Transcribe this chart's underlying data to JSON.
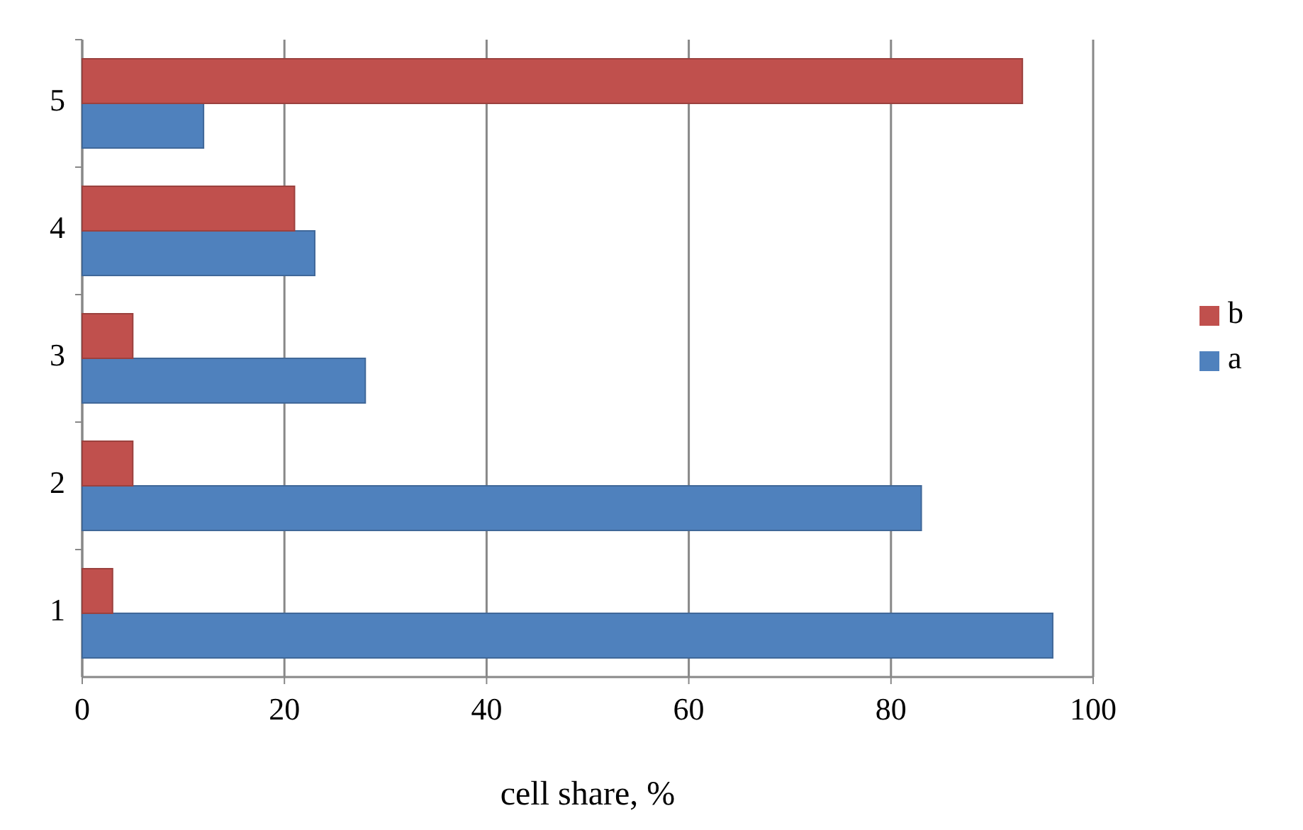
{
  "chart_data": {
    "type": "bar",
    "orientation": "horizontal",
    "xlabel": "cell share, %",
    "categories": [
      "5",
      "4",
      "3",
      "2",
      "1"
    ],
    "series": [
      {
        "name": "a",
        "color": "#4f81bd",
        "values": [
          12,
          23,
          28,
          83,
          96
        ]
      },
      {
        "name": "b",
        "color": "#c0504d",
        "values": [
          93,
          21,
          5,
          5,
          3
        ]
      }
    ],
    "xlim": [
      0,
      100
    ],
    "xticks": [
      0,
      20,
      40,
      60,
      80,
      100
    ],
    "grid": "x",
    "legend": "right"
  }
}
